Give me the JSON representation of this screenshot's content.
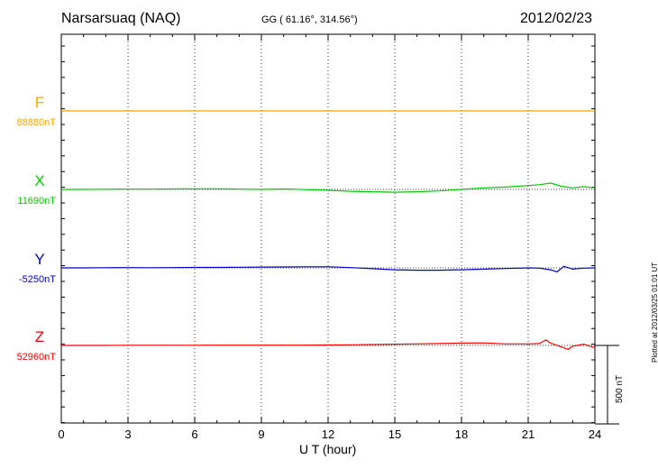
{
  "header": {
    "station": "Narsarsuaq (NAQ)",
    "coords": "GG ( 61.16°, 314.56°)",
    "date": "2012/02/23"
  },
  "footer": {
    "plotted_note": "Plotted at 2012/03/25 01:01 UT",
    "scale_label": "500 nT"
  },
  "chart_data": {
    "type": "line",
    "title": "Narsarsuaq (NAQ)",
    "xlabel": "U T (hour)",
    "ylabel": "",
    "xlim": [
      0,
      24
    ],
    "xticks": [
      0,
      3,
      6,
      9,
      12,
      15,
      18,
      21,
      24
    ],
    "grid": "vertical dotted at 3-hour intervals",
    "scale_bar_nT": 500,
    "series": [
      {
        "name": "F",
        "baseline": "88880nT",
        "color": "#ffa500",
        "x": [
          0,
          3,
          6,
          9,
          12,
          15,
          18,
          21,
          24
        ],
        "values": [
          88880,
          88880,
          88880,
          88880,
          88880,
          88880,
          88880,
          88880,
          88880
        ]
      },
      {
        "name": "X",
        "baseline": "11690nT",
        "color": "#00cc00",
        "x": [
          0,
          1,
          2,
          3,
          4,
          5,
          6,
          7,
          8,
          9,
          10,
          11,
          12,
          13,
          14,
          15,
          16,
          17,
          18,
          19,
          20,
          21,
          21.5,
          22,
          22.5,
          23,
          23.5,
          24
        ],
        "values": [
          11690,
          11690,
          11691,
          11692,
          11692,
          11693,
          11694,
          11694,
          11692,
          11690,
          11693,
          11689,
          11684,
          11678,
          11675,
          11672,
          11675,
          11680,
          11690,
          11700,
          11705,
          11715,
          11720,
          11730,
          11710,
          11700,
          11708,
          11700
        ]
      },
      {
        "name": "Y",
        "baseline": "-5250nT",
        "color": "#0000cc",
        "x": [
          0,
          1,
          2,
          3,
          4,
          5,
          6,
          7,
          8,
          9,
          10,
          11,
          12,
          13,
          14,
          15,
          16,
          17,
          18,
          19,
          20,
          21,
          21.5,
          22,
          22.3,
          22.6,
          23,
          23.5,
          24
        ],
        "values": [
          -5250,
          -5250,
          -5249,
          -5248,
          -5249,
          -5248,
          -5247,
          -5247,
          -5246,
          -5245,
          -5244,
          -5243,
          -5243,
          -5248,
          -5255,
          -5262,
          -5265,
          -5265,
          -5262,
          -5258,
          -5254,
          -5250,
          -5252,
          -5262,
          -5275,
          -5240,
          -5258,
          -5252,
          -5250
        ]
      },
      {
        "name": "Z",
        "baseline": "52960nT",
        "color": "#ff0000",
        "x": [
          0,
          1,
          2,
          3,
          4,
          5,
          6,
          7,
          8,
          9,
          10,
          11,
          12,
          13,
          14,
          15,
          16,
          17,
          18,
          19,
          20,
          21,
          21.5,
          21.8,
          22,
          22.5,
          22.8,
          23,
          23.5,
          24
        ],
        "values": [
          52960,
          52960,
          52960,
          52961,
          52961,
          52961,
          52961,
          52962,
          52962,
          52962,
          52962,
          52962,
          52963,
          52964,
          52966,
          52968,
          52970,
          52972,
          52975,
          52976,
          52970,
          52970,
          52972,
          52995,
          52975,
          52950,
          52935,
          52955,
          52968,
          52945
        ]
      }
    ]
  }
}
